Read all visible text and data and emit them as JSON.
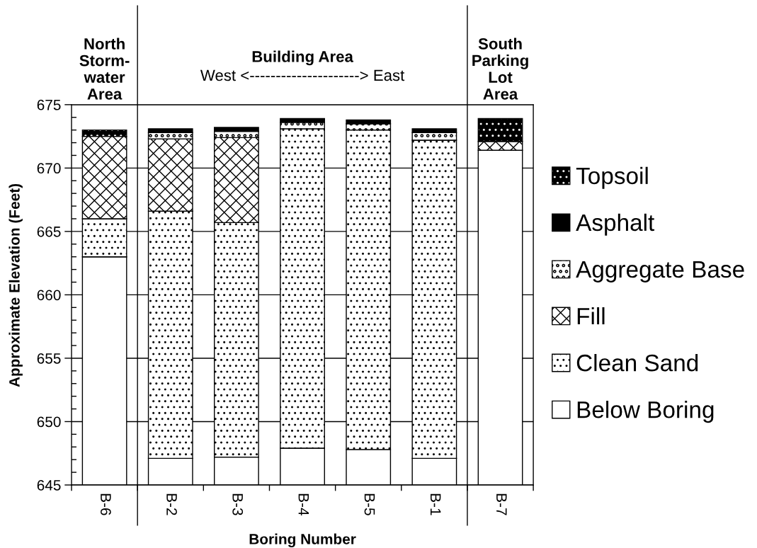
{
  "chart_data": {
    "type": "bar",
    "xlabel": "Boring Number",
    "ylabel": "Approximate Elevation (Feet)",
    "categories": [
      "B-6",
      "B-2",
      "B-3",
      "B-4",
      "B-5",
      "B-1",
      "B-7"
    ],
    "series": [
      {
        "name": "Below Boring",
        "color": "#ffffff",
        "base": [
          645,
          645,
          645,
          645,
          645,
          645,
          645
        ],
        "values": [
          18.0,
          2.1,
          2.2,
          2.9,
          2.8,
          2.1,
          26.4
        ]
      },
      {
        "name": "Clean Sand",
        "color": "#000000",
        "base": [
          663.0,
          647.1,
          647.2,
          647.9,
          647.8,
          647.1,
          null
        ],
        "values": [
          3.0,
          19.5,
          18.5,
          25.2,
          25.2,
          25.1,
          null
        ]
      },
      {
        "name": "Fill",
        "color": "#000000",
        "base": [
          666.0,
          666.6,
          665.7,
          null,
          null,
          null,
          671.4
        ],
        "values": [
          6.5,
          5.7,
          6.7,
          null,
          null,
          null,
          0.7
        ]
      },
      {
        "name": "Aggregate Base",
        "color": "#000000",
        "base": [
          null,
          672.3,
          672.4,
          673.1,
          673.0,
          672.2,
          null
        ],
        "values": [
          null,
          0.5,
          0.5,
          0.5,
          0.5,
          0.6,
          null
        ]
      },
      {
        "name": "Asphalt",
        "color": "#000000",
        "base": [
          null,
          672.8,
          672.9,
          673.6,
          673.5,
          672.8,
          null
        ],
        "values": [
          null,
          0.3,
          0.3,
          0.3,
          0.3,
          0.3,
          null
        ]
      },
      {
        "name": "Topsoil",
        "color": "#000000",
        "base": [
          672.5,
          null,
          null,
          null,
          null,
          null,
          672.1
        ],
        "values": [
          0.5,
          null,
          null,
          null,
          null,
          null,
          1.8
        ]
      }
    ],
    "ylim": [
      645,
      675
    ],
    "yticks": [
      645,
      650,
      655,
      660,
      665,
      670,
      675
    ],
    "grid": "y",
    "legend": "right",
    "annotations": [
      "North\nStorm-\nwater\nArea",
      "Building Area",
      "West <---------------------> East",
      "South\nParking\nLot\nArea"
    ]
  }
}
